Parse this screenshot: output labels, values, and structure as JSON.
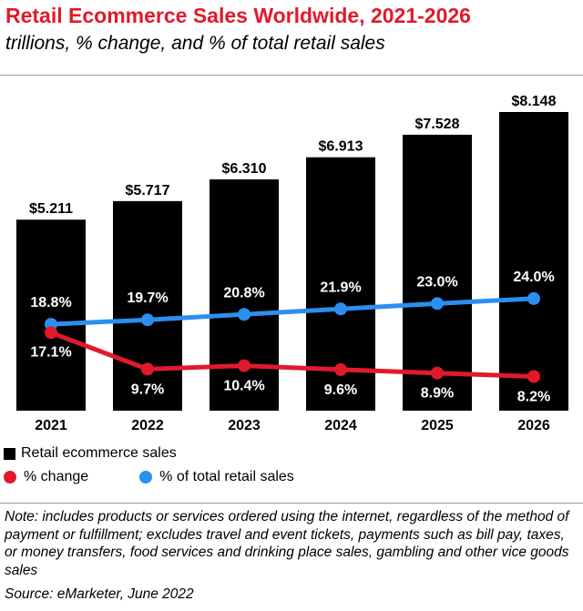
{
  "header": {
    "title": "Retail Ecommerce Sales Worldwide, 2021-2026",
    "subtitle": "trillions, % change, and % of total retail sales"
  },
  "legend": {
    "bars": "Retail ecommerce sales",
    "change": "% change",
    "share": "% of total retail sales"
  },
  "colors": {
    "bar": "#000000",
    "change": "#e2192c",
    "share": "#2b8ff0",
    "title": "#e2192c"
  },
  "footer": {
    "note": "Note: includes products or services ordered using the internet, regardless of the method of payment or fulfillment; excludes travel and event tickets, payments such as bill pay, taxes, or money transfers, food services and drinking place sales, gambling and other vice goods sales",
    "source": "Source: eMarketer, June 2022"
  },
  "chart_data": {
    "type": "bar",
    "title": "Retail Ecommerce Sales Worldwide, 2021-2026",
    "subtitle": "trillions, % change, and % of total retail sales",
    "categories": [
      "2021",
      "2022",
      "2023",
      "2024",
      "2025",
      "2026"
    ],
    "series": [
      {
        "name": "Retail ecommerce sales",
        "type": "bar",
        "values": [
          5.211,
          5.717,
          6.31,
          6.913,
          7.528,
          8.148
        ],
        "labels": [
          "$5.211",
          "$5.717",
          "$6.310",
          "$6.913",
          "$7.528",
          "$8.148"
        ]
      },
      {
        "name": "% change",
        "type": "line",
        "values": [
          17.1,
          9.7,
          10.4,
          9.6,
          8.9,
          8.2
        ],
        "labels": [
          "17.1%",
          "9.7%",
          "10.4%",
          "9.6%",
          "8.9%",
          "8.2%"
        ]
      },
      {
        "name": "% of total retail sales",
        "type": "line",
        "values": [
          18.8,
          19.7,
          20.8,
          21.9,
          23.0,
          24.0
        ],
        "labels": [
          "18.8%",
          "19.7%",
          "20.8%",
          "21.9%",
          "23.0%",
          "24.0%"
        ]
      }
    ],
    "grid": false,
    "legend_position": "bottom-left"
  }
}
